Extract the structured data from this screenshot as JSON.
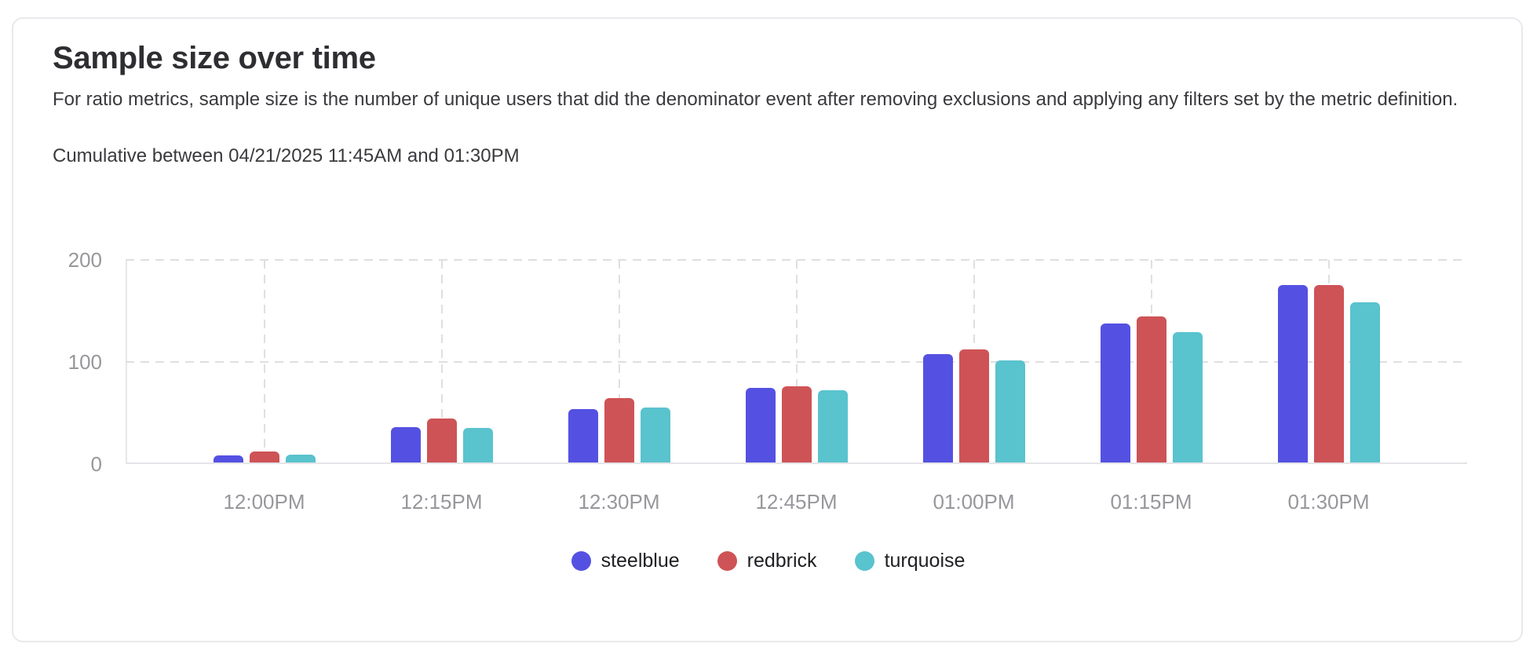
{
  "card": {
    "title": "Sample size over time",
    "description": "For ratio metrics, sample size is the number of unique users that did the denominator event after removing exclusions and applying any filters set by the metric definition.",
    "range_label": "Cumulative between 04/21/2025 11:45AM and 01:30PM"
  },
  "chart_data": {
    "type": "bar",
    "title": "Sample size over time",
    "categories": [
      "12:00PM",
      "12:15PM",
      "12:30PM",
      "12:45PM",
      "01:00PM",
      "01:15PM",
      "01:30PM"
    ],
    "series": [
      {
        "name": "steelblue",
        "color": "#5451E2",
        "values": [
          7,
          35,
          52,
          73,
          106,
          136,
          174
        ]
      },
      {
        "name": "redbrick",
        "color": "#CE5356",
        "values": [
          11,
          43,
          63,
          75,
          111,
          143,
          174
        ]
      },
      {
        "name": "turquoise",
        "color": "#59C3CE",
        "values": [
          8,
          34,
          54,
          71,
          100,
          128,
          157
        ]
      }
    ],
    "ylim": [
      0,
      200
    ],
    "yticks": [
      0,
      100,
      200
    ],
    "xlabel": "",
    "ylabel": "",
    "grid": "dashed horizontal and vertical",
    "legend_position": "bottom"
  },
  "theme": {
    "axis_text_color": "#97979C",
    "grid_color": "#DFDFE3",
    "axis_line_color": "#E5E5E9",
    "title_color": "#2E2E32",
    "body_text_color": "#3A3A3E",
    "legend_text_color": "#1F1F23",
    "card_border_color": "#E9E9ED",
    "card_background": "#FFFFFF"
  }
}
